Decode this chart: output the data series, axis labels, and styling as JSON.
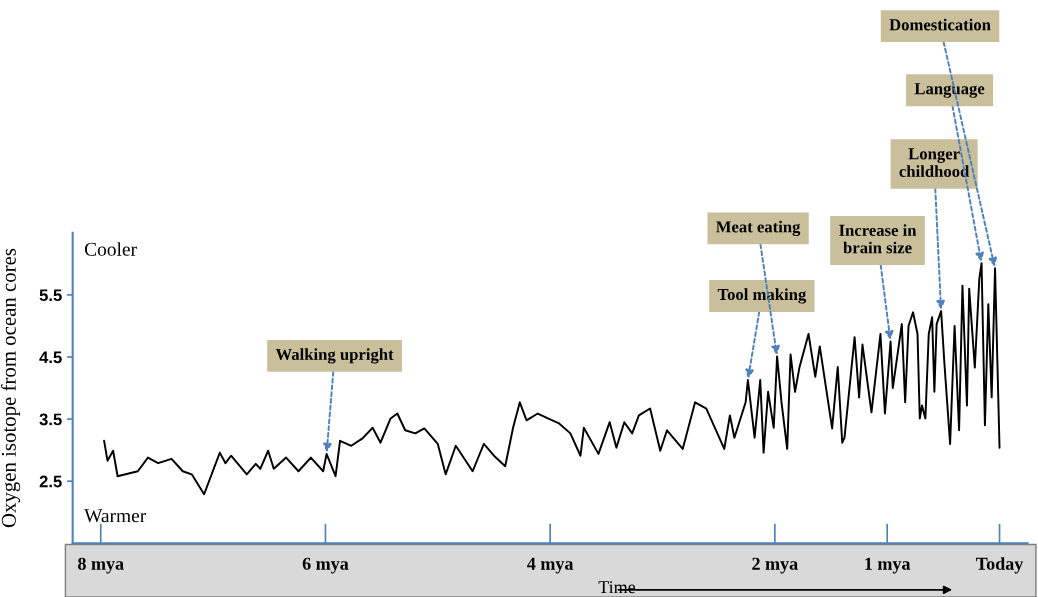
{
  "chart_data": {
    "type": "line",
    "xlabel": "Time",
    "ylabel": "Oxygen isotope from ocean cores",
    "x": [
      7.97,
      7.94,
      7.89,
      7.85,
      7.67,
      7.58,
      7.49,
      7.37,
      7.27,
      7.19,
      7.08,
      6.94,
      6.89,
      6.84,
      6.7,
      6.62,
      6.58,
      6.51,
      6.46,
      6.35,
      6.24,
      6.13,
      6.02,
      5.99,
      5.91,
      5.87,
      5.77,
      5.67,
      5.58,
      5.51,
      5.42,
      5.36,
      5.29,
      5.2,
      5.12,
      5.0,
      4.93,
      4.84,
      4.69,
      4.59,
      4.5,
      4.4,
      4.33,
      4.27,
      4.21,
      4.11,
      4.02,
      3.92,
      3.82,
      3.73,
      3.7,
      3.57,
      3.47,
      3.41,
      3.34,
      3.27,
      3.21,
      3.11,
      3.02,
      2.96,
      2.82,
      2.71,
      2.61,
      2.45,
      2.4,
      2.36,
      2.26,
      2.24,
      2.18,
      2.13,
      2.1,
      2.06,
      2.01,
      1.98,
      1.94,
      1.89,
      1.86,
      1.82,
      1.78,
      1.7,
      1.64,
      1.6,
      1.49,
      1.44,
      1.4,
      1.38,
      1.29,
      1.25,
      1.22,
      1.14,
      1.06,
      1.02,
      0.97,
      0.95,
      0.87,
      0.84,
      0.81,
      0.77,
      0.73,
      0.71,
      0.69,
      0.66,
      0.63,
      0.6,
      0.58,
      0.56,
      0.52,
      0.49,
      0.44,
      0.4,
      0.36,
      0.33,
      0.29,
      0.27,
      0.22,
      0.18,
      0.16,
      0.13,
      0.1,
      0.07,
      0.04,
      0.0
    ],
    "series": [
      {
        "color": "#000000",
        "values": [
          3.15,
          2.83,
          2.99,
          2.58,
          2.66,
          2.88,
          2.79,
          2.86,
          2.66,
          2.61,
          2.29,
          2.96,
          2.79,
          2.91,
          2.61,
          2.78,
          2.7,
          2.99,
          2.7,
          2.88,
          2.66,
          2.88,
          2.66,
          2.94,
          2.58,
          3.15,
          3.07,
          3.19,
          3.36,
          3.12,
          3.51,
          3.59,
          3.32,
          3.27,
          3.35,
          3.1,
          2.61,
          3.07,
          2.66,
          3.1,
          2.91,
          2.74,
          3.36,
          3.77,
          3.48,
          3.59,
          3.51,
          3.43,
          3.27,
          2.91,
          3.36,
          2.94,
          3.45,
          3.04,
          3.45,
          3.27,
          3.56,
          3.67,
          2.99,
          3.32,
          3.02,
          3.77,
          3.67,
          3.02,
          3.56,
          3.2,
          3.77,
          4.13,
          3.2,
          4.13,
          2.96,
          3.94,
          3.36,
          4.51,
          3.76,
          3.02,
          4.54,
          3.94,
          4.34,
          4.87,
          4.18,
          4.67,
          3.35,
          4.34,
          3.12,
          3.2,
          4.82,
          3.85,
          4.7,
          3.61,
          4.87,
          3.59,
          4.75,
          4.0,
          5.03,
          3.77,
          5.0,
          5.22,
          4.87,
          3.51,
          3.72,
          3.51,
          4.87,
          5.14,
          3.94,
          5.03,
          5.24,
          4.38,
          3.1,
          5.0,
          3.32,
          5.65,
          3.72,
          5.6,
          4.33,
          5.76,
          6.01,
          3.4,
          5.35,
          3.85,
          5.93,
          3.04
        ]
      }
    ],
    "xlim": [
      8.25,
      -0.25
    ],
    "xticks": [
      {
        "value": 8,
        "label": "8 mya"
      },
      {
        "value": 6,
        "label": "6 mya"
      },
      {
        "value": 4,
        "label": "4 mya"
      },
      {
        "value": 2,
        "label": "2 mya"
      },
      {
        "value": 1,
        "label": "1 mya"
      },
      {
        "value": 0,
        "label": "Today"
      }
    ],
    "ylim": [
      1.5,
      6.5
    ],
    "yticks": [
      2.5,
      3.5,
      4.5,
      5.5
    ],
    "annotations": [
      "Cooler",
      "Warmer",
      {
        "text": "Walking upright",
        "x": 5.99,
        "y": 2.94
      },
      {
        "text": "Tool making",
        "x": 2.24,
        "y": 4.13
      },
      {
        "text": "Meat eating",
        "x": 1.98,
        "y": 4.51
      },
      {
        "text": "Increase in\nbrain size",
        "x": 0.97,
        "y": 4.75
      },
      {
        "text": "Longer\nchildhood",
        "x": 0.52,
        "y": 5.24
      },
      {
        "text": "Language",
        "x": 0.16,
        "y": 6.01
      },
      {
        "text": "Domestication",
        "x": 0.04,
        "y": 5.93
      }
    ],
    "grid": false
  }
}
